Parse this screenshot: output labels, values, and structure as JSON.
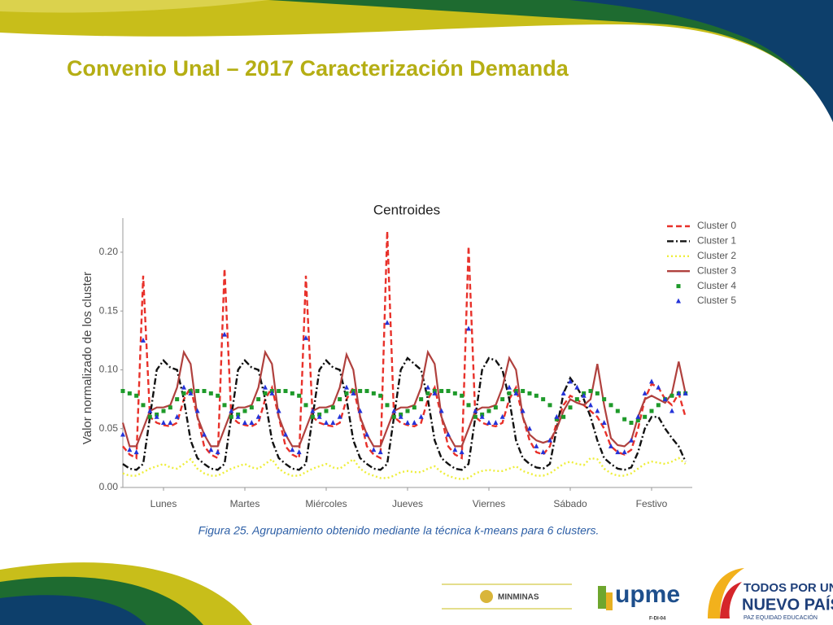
{
  "slide": {
    "title": "Convenio Unal – 2017 Caracterización Demanda",
    "caption": "Figura 25. Agrupamiento obtenido mediante la técnica k-means para 6 clusters.",
    "logos": {
      "minminas": "MINMINAS",
      "upme": "upme",
      "code": "F-DI-04",
      "gov1": "TODOS POR UN",
      "gov2": "NUEVO PAÍS",
      "gov3": "PAZ  EQUIDAD  EDUCACIÓN"
    }
  },
  "chart_data": {
    "type": "line",
    "title": "Centroides",
    "y_label": "Valor normalizado de los cluster",
    "legend": "upper right",
    "grid": true,
    "x": [
      0,
      2,
      4,
      6,
      8,
      10,
      12,
      14,
      16,
      18,
      20,
      22,
      24,
      26,
      28,
      30,
      32,
      34,
      36,
      38,
      40,
      42,
      44,
      46,
      48,
      50,
      52,
      54,
      56,
      58,
      60,
      62,
      64,
      66,
      68,
      70,
      72,
      74,
      76,
      78,
      80,
      82,
      84,
      86,
      88,
      90,
      92,
      94,
      96,
      98,
      100,
      102,
      104,
      106,
      108,
      110,
      112,
      114,
      116,
      118,
      120,
      122,
      124,
      126,
      128,
      130,
      132,
      134,
      136,
      138,
      140,
      142,
      144,
      146,
      148,
      150,
      152,
      154,
      156,
      158,
      160,
      162,
      164,
      166
    ],
    "xlim": [
      0,
      168
    ],
    "xticks": [
      {
        "value": 12,
        "label": "Lunes"
      },
      {
        "value": 36,
        "label": "Martes"
      },
      {
        "value": 60,
        "label": "Miércoles"
      },
      {
        "value": 84,
        "label": "Jueves"
      },
      {
        "value": 108,
        "label": "Viernes"
      },
      {
        "value": 132,
        "label": "Sábado"
      },
      {
        "value": 156,
        "label": "Festivo"
      }
    ],
    "ylim": [
      0,
      0.229
    ],
    "yticks": [
      {
        "value": 0,
        "label": "0.00"
      },
      0.05,
      {
        "value": 0.1,
        "label": "0.10"
      },
      0.15,
      {
        "value": 0.2,
        "label": "0.20"
      }
    ],
    "series": [
      {
        "name": "Cluster 0",
        "color": "#e8312a",
        "style": "dashed",
        "values": [
          0.035,
          0.028,
          0.025,
          0.18,
          0.06,
          0.055,
          0.053,
          0.052,
          0.055,
          0.075,
          0.085,
          0.06,
          0.035,
          0.028,
          0.025,
          0.186,
          0.06,
          0.055,
          0.053,
          0.052,
          0.055,
          0.075,
          0.085,
          0.06,
          0.035,
          0.028,
          0.025,
          0.18,
          0.06,
          0.055,
          0.053,
          0.052,
          0.055,
          0.075,
          0.085,
          0.06,
          0.035,
          0.028,
          0.025,
          0.218,
          0.06,
          0.055,
          0.053,
          0.052,
          0.055,
          0.075,
          0.085,
          0.06,
          0.035,
          0.028,
          0.025,
          0.205,
          0.06,
          0.055,
          0.053,
          0.052,
          0.055,
          0.075,
          0.085,
          0.06,
          0.04,
          0.03,
          0.028,
          0.035,
          0.055,
          0.07,
          0.078,
          0.075,
          0.07,
          0.065,
          0.06,
          0.05,
          0.035,
          0.03,
          0.028,
          0.032,
          0.05,
          0.075,
          0.088,
          0.085,
          0.075,
          0.07,
          0.08,
          0.06
        ]
      },
      {
        "name": "Cluster 1",
        "color": "#111111",
        "style": "dashdot",
        "values": [
          0.02,
          0.016,
          0.015,
          0.02,
          0.06,
          0.1,
          0.108,
          0.102,
          0.1,
          0.075,
          0.04,
          0.025,
          0.02,
          0.016,
          0.015,
          0.02,
          0.06,
          0.1,
          0.108,
          0.102,
          0.1,
          0.075,
          0.04,
          0.025,
          0.02,
          0.016,
          0.015,
          0.02,
          0.06,
          0.1,
          0.108,
          0.102,
          0.1,
          0.075,
          0.04,
          0.025,
          0.02,
          0.016,
          0.015,
          0.02,
          0.06,
          0.1,
          0.11,
          0.105,
          0.1,
          0.075,
          0.04,
          0.025,
          0.02,
          0.016,
          0.015,
          0.02,
          0.06,
          0.1,
          0.11,
          0.108,
          0.1,
          0.075,
          0.04,
          0.025,
          0.02,
          0.017,
          0.016,
          0.02,
          0.05,
          0.08,
          0.093,
          0.085,
          0.075,
          0.06,
          0.04,
          0.025,
          0.02,
          0.016,
          0.015,
          0.017,
          0.03,
          0.05,
          0.06,
          0.06,
          0.05,
          0.042,
          0.035,
          0.022
        ]
      },
      {
        "name": "Cluster 2",
        "color": "#eeee3a",
        "style": "dotted",
        "values": [
          0.012,
          0.01,
          0.01,
          0.013,
          0.016,
          0.018,
          0.02,
          0.017,
          0.016,
          0.02,
          0.024,
          0.016,
          0.012,
          0.01,
          0.01,
          0.013,
          0.016,
          0.018,
          0.02,
          0.017,
          0.016,
          0.02,
          0.024,
          0.016,
          0.012,
          0.01,
          0.01,
          0.013,
          0.016,
          0.018,
          0.02,
          0.017,
          0.016,
          0.02,
          0.024,
          0.016,
          0.012,
          0.01,
          0.008,
          0.008,
          0.01,
          0.013,
          0.014,
          0.013,
          0.013,
          0.016,
          0.018,
          0.013,
          0.01,
          0.008,
          0.007,
          0.008,
          0.012,
          0.014,
          0.015,
          0.014,
          0.014,
          0.016,
          0.018,
          0.014,
          0.012,
          0.01,
          0.01,
          0.012,
          0.016,
          0.02,
          0.022,
          0.02,
          0.019,
          0.025,
          0.024,
          0.016,
          0.012,
          0.01,
          0.01,
          0.012,
          0.016,
          0.02,
          0.022,
          0.021,
          0.02,
          0.022,
          0.025,
          0.02
        ]
      },
      {
        "name": "Cluster 3",
        "color": "#b0413e",
        "style": "solid",
        "values": [
          0.055,
          0.035,
          0.035,
          0.05,
          0.065,
          0.068,
          0.068,
          0.07,
          0.085,
          0.115,
          0.105,
          0.06,
          0.045,
          0.035,
          0.035,
          0.05,
          0.065,
          0.068,
          0.068,
          0.07,
          0.085,
          0.115,
          0.105,
          0.06,
          0.045,
          0.035,
          0.035,
          0.05,
          0.065,
          0.068,
          0.068,
          0.07,
          0.085,
          0.113,
          0.1,
          0.06,
          0.045,
          0.035,
          0.035,
          0.05,
          0.065,
          0.068,
          0.068,
          0.07,
          0.085,
          0.115,
          0.105,
          0.06,
          0.045,
          0.035,
          0.035,
          0.05,
          0.065,
          0.068,
          0.068,
          0.07,
          0.085,
          0.11,
          0.1,
          0.06,
          0.045,
          0.04,
          0.038,
          0.04,
          0.05,
          0.065,
          0.075,
          0.072,
          0.07,
          0.075,
          0.105,
          0.07,
          0.042,
          0.036,
          0.035,
          0.04,
          0.06,
          0.075,
          0.078,
          0.075,
          0.072,
          0.08,
          0.107,
          0.08
        ]
      },
      {
        "name": "Cluster 4",
        "color": "#1e9a2a",
        "style": "square",
        "values": [
          0.082,
          0.08,
          0.078,
          0.07,
          0.06,
          0.062,
          0.065,
          0.068,
          0.075,
          0.08,
          0.082,
          0.082,
          0.082,
          0.08,
          0.078,
          0.07,
          0.06,
          0.062,
          0.065,
          0.068,
          0.075,
          0.08,
          0.082,
          0.082,
          0.082,
          0.08,
          0.078,
          0.07,
          0.06,
          0.062,
          0.065,
          0.068,
          0.075,
          0.08,
          0.082,
          0.082,
          0.082,
          0.08,
          0.078,
          0.07,
          0.06,
          0.062,
          0.065,
          0.068,
          0.075,
          0.08,
          0.082,
          0.082,
          0.082,
          0.08,
          0.078,
          0.07,
          0.06,
          0.062,
          0.065,
          0.068,
          0.075,
          0.08,
          0.082,
          0.082,
          0.08,
          0.078,
          0.075,
          0.07,
          0.058,
          0.06,
          0.068,
          0.075,
          0.08,
          0.082,
          0.08,
          0.075,
          0.07,
          0.065,
          0.058,
          0.055,
          0.057,
          0.06,
          0.065,
          0.07,
          0.075,
          0.078,
          0.08,
          0.08
        ]
      },
      {
        "name": "Cluster 5",
        "color": "#2433d8",
        "style": "triangle",
        "values": [
          0.045,
          0.032,
          0.03,
          0.125,
          0.065,
          0.06,
          0.055,
          0.055,
          0.06,
          0.085,
          0.08,
          0.065,
          0.045,
          0.032,
          0.03,
          0.13,
          0.065,
          0.06,
          0.055,
          0.055,
          0.06,
          0.085,
          0.08,
          0.065,
          0.045,
          0.032,
          0.03,
          0.127,
          0.065,
          0.06,
          0.055,
          0.055,
          0.06,
          0.085,
          0.08,
          0.065,
          0.045,
          0.032,
          0.03,
          0.14,
          0.065,
          0.06,
          0.055,
          0.055,
          0.06,
          0.085,
          0.08,
          0.065,
          0.045,
          0.032,
          0.03,
          0.135,
          0.065,
          0.06,
          0.055,
          0.055,
          0.06,
          0.085,
          0.08,
          0.065,
          0.05,
          0.035,
          0.03,
          0.04,
          0.06,
          0.08,
          0.09,
          0.085,
          0.078,
          0.07,
          0.065,
          0.055,
          0.035,
          0.03,
          0.03,
          0.04,
          0.06,
          0.08,
          0.09,
          0.085,
          0.075,
          0.065,
          0.08,
          0.08
        ]
      }
    ]
  }
}
